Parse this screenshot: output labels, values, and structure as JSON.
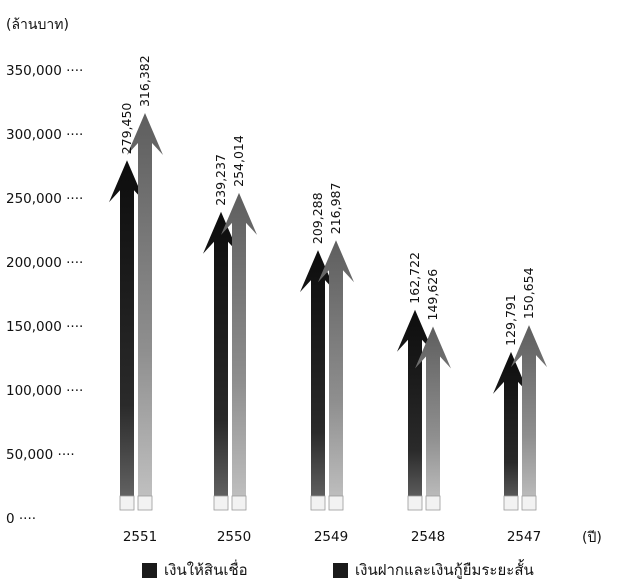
{
  "chart_data": {
    "type": "bar",
    "title": "",
    "ylabel": "(ล้านบาท)",
    "xlabel": "(ปี)",
    "categories": [
      "2551",
      "2550",
      "2549",
      "2548",
      "2547"
    ],
    "series": [
      {
        "name": "เงินให้สินเชื่อ",
        "values": [
          279450,
          239237,
          209288,
          162722,
          129791
        ]
      },
      {
        "name": "เงินฝากและเงินกู้ยืมระยะสั้น",
        "values": [
          316382,
          254014,
          216987,
          149626,
          150654
        ]
      }
    ],
    "value_labels": [
      [
        "279,450",
        "239,237",
        "209,288",
        "162,722",
        "129,791"
      ],
      [
        "316,382",
        "254,014",
        "216,987",
        "149,626",
        "150,654"
      ]
    ],
    "y_ticks": [
      {
        "value": 0,
        "label": "0 ····"
      },
      {
        "value": 50000,
        "label": "50,000 ····"
      },
      {
        "value": 100000,
        "label": "100,000 ····"
      },
      {
        "value": 150000,
        "label": "150,000 ····"
      },
      {
        "value": 200000,
        "label": "200,000 ····"
      },
      {
        "value": 250000,
        "label": "250,000 ····"
      },
      {
        "value": 300000,
        "label": "300,000 ····"
      },
      {
        "value": 350000,
        "label": "350,000 ····"
      }
    ],
    "ylim": [
      0,
      350000
    ],
    "grid": false,
    "legend_position": "bottom",
    "colors": [
      "#1a1a1a",
      "#8a8a8a"
    ]
  }
}
